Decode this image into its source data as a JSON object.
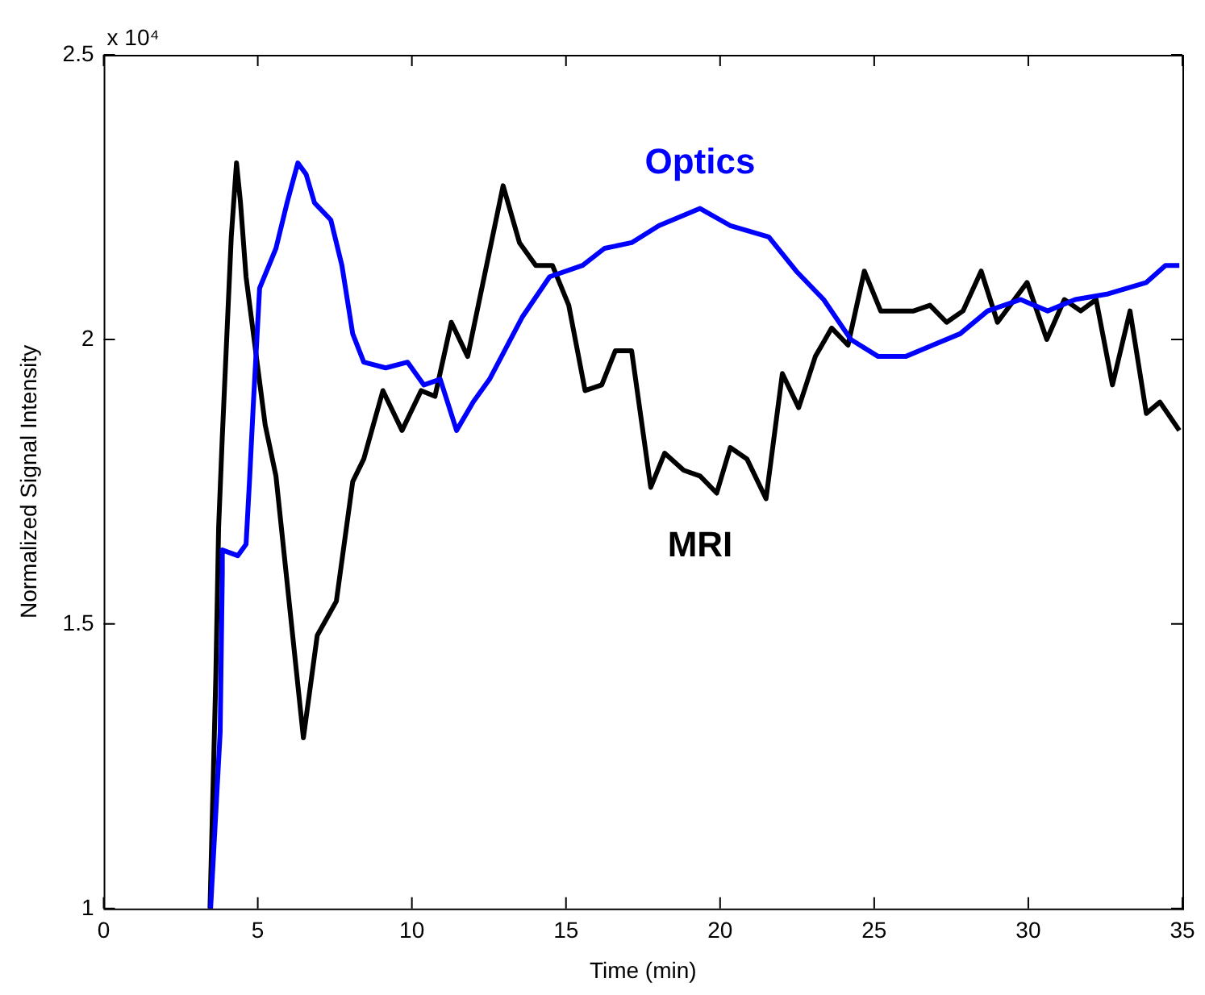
{
  "chart_data": {
    "type": "line",
    "xlabel": "Time (min)",
    "ylabel": "Normalized Signal Intensity",
    "annotations": [
      "x 10⁴"
    ],
    "xlim": [
      0,
      35
    ],
    "xticks": [
      0,
      5,
      10,
      15,
      20,
      25,
      30,
      35
    ],
    "ylim": [
      1,
      2.5
    ],
    "yticks": [
      1,
      1.5,
      2,
      2.5
    ],
    "grid": false,
    "legend": false,
    "marker": "none",
    "line_style": "solid",
    "series": [
      {
        "name": "Optics",
        "color": "#0000ff",
        "x": [
          3.47,
          3.78,
          3.85,
          3.85,
          4.35,
          4.62,
          4.74,
          4.85,
          5.06,
          5.59,
          5.95,
          6.3,
          6.57,
          6.84,
          7.37,
          7.73,
          8.08,
          8.44,
          9.15,
          9.86,
          10.39,
          10.92,
          11.45,
          11.99,
          12.52,
          13.59,
          14.47,
          15.54,
          16.25,
          17.13,
          18.02,
          19.35,
          20.33,
          21.58,
          22.47,
          23.36,
          24.24,
          25.13,
          26.02,
          26.9,
          27.79,
          28.68,
          29.75,
          30.63,
          31.52,
          32.59,
          33.83,
          34.45,
          34.9
        ],
        "values": [
          1.0,
          1.31,
          1.59,
          1.63,
          1.62,
          1.64,
          1.76,
          1.88,
          2.09,
          2.16,
          2.24,
          2.31,
          2.29,
          2.24,
          2.21,
          2.13,
          2.01,
          1.96,
          1.95,
          1.96,
          1.92,
          1.93,
          1.84,
          1.89,
          1.93,
          2.04,
          2.11,
          2.13,
          2.16,
          2.17,
          2.2,
          2.23,
          2.2,
          2.18,
          2.12,
          2.07,
          2.0,
          1.97,
          1.97,
          1.99,
          2.01,
          2.05,
          2.07,
          2.05,
          2.07,
          2.08,
          2.1,
          2.13,
          2.13
        ]
      },
      {
        "name": "MRI",
        "color": "#000000",
        "x": [
          3.45,
          3.64,
          3.73,
          3.85,
          4.14,
          4.31,
          4.44,
          4.62,
          5.24,
          5.59,
          6.48,
          6.93,
          7.55,
          8.08,
          8.44,
          9.06,
          9.68,
          10.3,
          10.75,
          11.28,
          11.81,
          12.96,
          13.49,
          14.02,
          14.56,
          15.09,
          15.62,
          16.16,
          16.6,
          17.13,
          17.75,
          18.2,
          18.82,
          19.35,
          19.89,
          20.33,
          20.87,
          21.49,
          22.02,
          22.55,
          23.09,
          23.62,
          24.15,
          24.68,
          25.21,
          26.28,
          26.81,
          27.35,
          27.88,
          28.47,
          29.0,
          29.96,
          30.6,
          31.17,
          31.7,
          32.2,
          32.73,
          33.3,
          33.83,
          34.27,
          34.9
        ],
        "values": [
          1.0,
          1.41,
          1.67,
          1.83,
          2.18,
          2.31,
          2.24,
          2.11,
          1.85,
          1.76,
          1.3,
          1.48,
          1.54,
          1.75,
          1.79,
          1.91,
          1.84,
          1.91,
          1.9,
          2.03,
          1.97,
          2.27,
          2.17,
          2.13,
          2.13,
          2.06,
          1.91,
          1.92,
          1.98,
          1.98,
          1.74,
          1.8,
          1.77,
          1.76,
          1.73,
          1.81,
          1.79,
          1.72,
          1.94,
          1.88,
          1.97,
          2.02,
          1.99,
          2.12,
          2.05,
          2.05,
          2.06,
          2.03,
          2.05,
          2.12,
          2.03,
          2.1,
          2.0,
          2.07,
          2.05,
          2.07,
          1.92,
          2.05,
          1.87,
          1.89,
          1.84
        ]
      }
    ]
  }
}
